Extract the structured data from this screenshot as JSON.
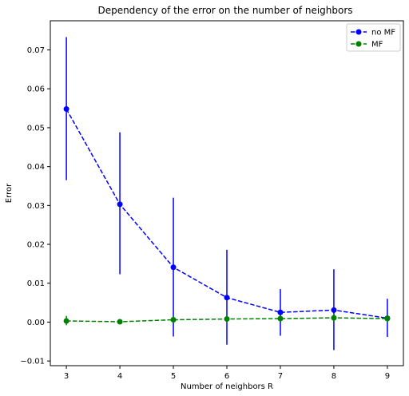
{
  "chart_data": {
    "type": "line",
    "title": "Dependency of the error on the number of neighbors",
    "xlabel": "Number of neighbors R",
    "ylabel": "Error",
    "x": [
      3,
      4,
      5,
      6,
      7,
      8,
      9
    ],
    "xlim": [
      2.7,
      9.3
    ],
    "ylim": [
      -0.0112,
      0.0775
    ],
    "xticks": [
      3,
      4,
      5,
      6,
      7,
      8,
      9
    ],
    "yticks": [
      -0.01,
      0.0,
      0.01,
      0.02,
      0.03,
      0.04,
      0.05,
      0.06,
      0.07
    ],
    "ytick_labels": [
      "−0.01",
      "0.00",
      "0.01",
      "0.02",
      "0.03",
      "0.04",
      "0.05",
      "0.06",
      "0.07"
    ],
    "grid": false,
    "legend_position": "top-right",
    "series": [
      {
        "name": "no MF",
        "color": "#0000ff",
        "linestyle": "dashed",
        "marker": "circle",
        "values": [
          0.0548,
          0.0303,
          0.0141,
          0.0063,
          0.0025,
          0.0031,
          0.001
        ],
        "err_low": [
          0.0365,
          0.0123,
          -0.0037,
          -0.0058,
          -0.0035,
          -0.0072,
          -0.0038
        ],
        "err_high": [
          0.0733,
          0.0488,
          0.032,
          0.0186,
          0.0085,
          0.0136,
          0.006
        ]
      },
      {
        "name": "MF",
        "color": "#008000",
        "linestyle": "dashed",
        "marker": "circle",
        "values": [
          0.0003,
          0.0001,
          0.0006,
          0.0008,
          0.0009,
          0.0011,
          0.0009
        ],
        "err_low": [
          -0.0008,
          0.0,
          -0.0003,
          -0.0001,
          0.0,
          0.0,
          -0.0001
        ],
        "err_high": [
          0.0016,
          0.0003,
          0.0015,
          0.0017,
          0.0018,
          0.0022,
          0.0019
        ]
      }
    ]
  }
}
